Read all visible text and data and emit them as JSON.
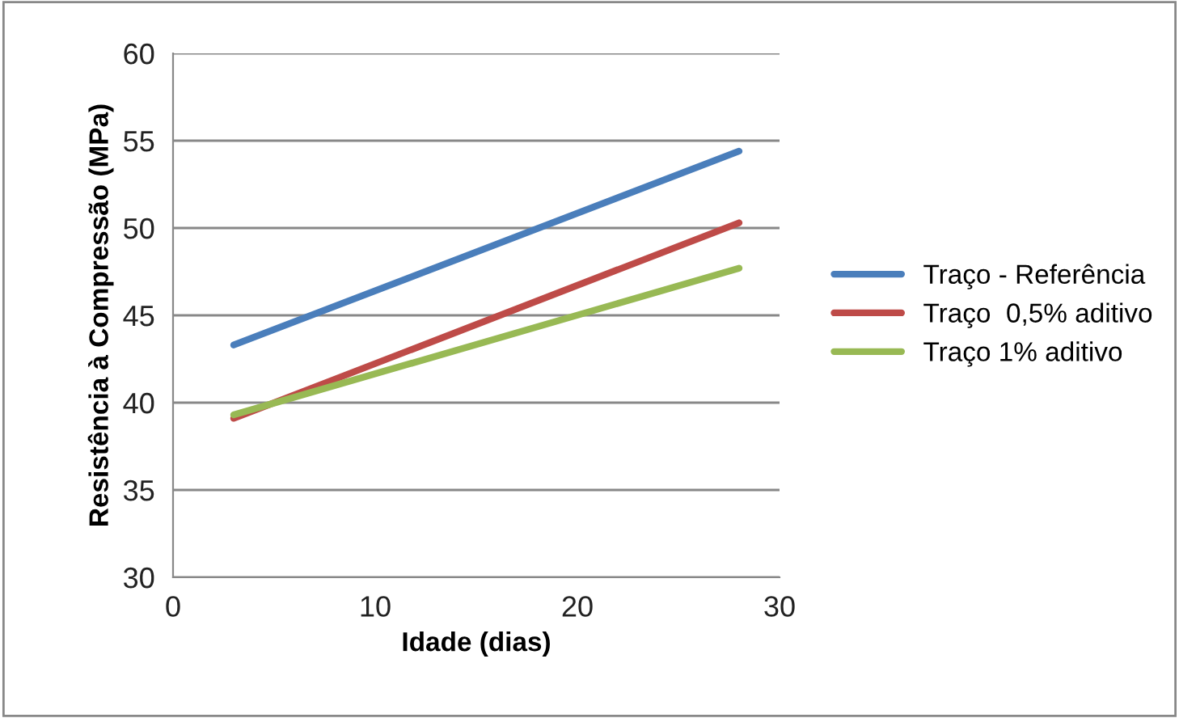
{
  "chart_data": {
    "type": "line",
    "xlabel": "Idade (dias)",
    "ylabel": "Resistência à Compressão (MPa)",
    "x": [
      3,
      28
    ],
    "series": [
      {
        "name": "Traço - Referência",
        "color": "#4a7ebb",
        "values": [
          43.3,
          54.4
        ]
      },
      {
        "name": "Traço  0,5% aditivo",
        "color": "#be4b48",
        "values": [
          39.1,
          50.3
        ]
      },
      {
        "name": "Traço 1% aditivo",
        "color": "#98b954",
        "values": [
          39.3,
          47.7
        ]
      }
    ],
    "xlim": [
      0,
      30
    ],
    "xticks": [
      0,
      10,
      20,
      30
    ],
    "ylim": [
      30,
      60
    ],
    "yticks": [
      30,
      35,
      40,
      45,
      50,
      55,
      60
    ],
    "grid": "y",
    "legend": "right",
    "marker": "none",
    "line_style": "solid"
  }
}
